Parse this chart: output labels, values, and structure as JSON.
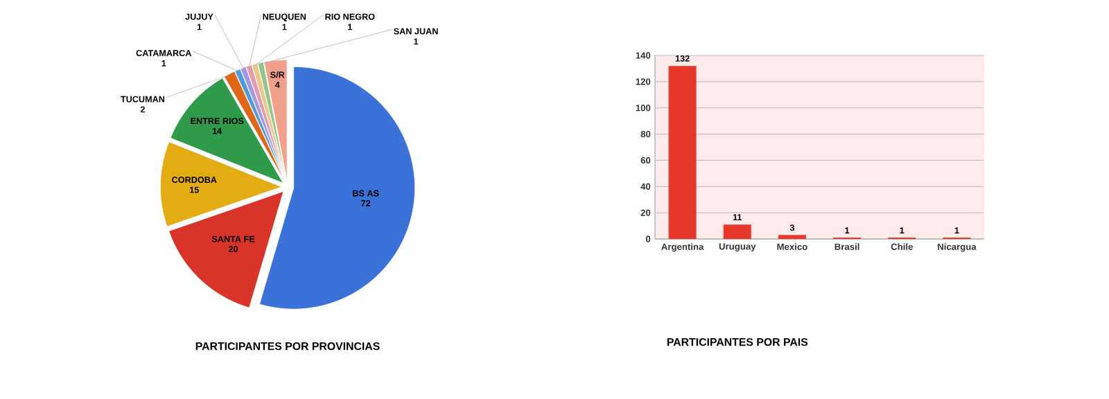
{
  "chart_data": [
    {
      "type": "pie",
      "title": "PARTICIPANTES POR PROVINCIAS",
      "categories": [
        "BS AS",
        "SANTA FE",
        "CORDOBA",
        "ENTRE RIOS",
        "TUCUMAN",
        "CATAMARCA",
        "JUJUY",
        "NEUQUEN",
        "RIO NEGRO",
        "SAN JUAN",
        "S/R"
      ],
      "values": [
        72,
        20,
        15,
        14,
        2,
        1,
        1,
        1,
        1,
        1,
        4
      ],
      "colors": [
        "#3a72d8",
        "#d8342a",
        "#e2ac12",
        "#2f9a4a",
        "#e0661a",
        "#4f9ad8",
        "#a498e0",
        "#e29aae",
        "#ecc888",
        "#94c48c",
        "#f2a08c"
      ],
      "data_labels": true
    },
    {
      "type": "bar",
      "title": "PARTICIPANTES POR PAIS",
      "categories": [
        "Argentina",
        "Uruguay",
        "Mexico",
        "Brasil",
        "Chile",
        "Nicargua"
      ],
      "values": [
        132,
        11,
        3,
        1,
        1,
        1
      ],
      "color": "#e8382b",
      "ylim": [
        0,
        140
      ],
      "yticks": [
        0,
        20,
        40,
        60,
        80,
        100,
        120,
        140
      ],
      "grid": "y",
      "data_labels": true
    }
  ]
}
